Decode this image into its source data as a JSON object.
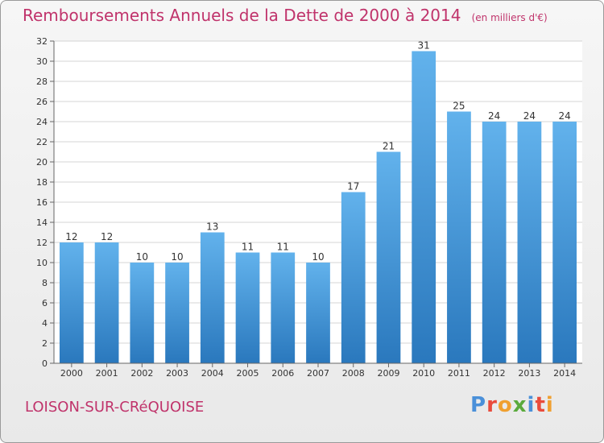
{
  "header": {
    "title": "Remboursements Annuels de la Dette de 2000 à 2014",
    "units": "(en milliers d'€)"
  },
  "footer": {
    "commune": "LOISON-SUR-CRéQUOISE",
    "logo_letters": [
      {
        "ch": "P",
        "color": "#4a90d9"
      },
      {
        "ch": "r",
        "color": "#e94b3c"
      },
      {
        "ch": "o",
        "color": "#f0a030"
      },
      {
        "ch": "x",
        "color": "#5aaa3c"
      },
      {
        "ch": "i",
        "color": "#4a90d9"
      },
      {
        "ch": "t",
        "color": "#e94b3c"
      },
      {
        "ch": "i",
        "color": "#f0a030"
      }
    ]
  },
  "colors": {
    "title": "#c0336b",
    "bar_top": "#62b2ec",
    "bar_bottom": "#2a78bd",
    "grid": "#d4d4d4",
    "axis": "#666666"
  },
  "chart_data": {
    "type": "bar",
    "categories": [
      "2000",
      "2001",
      "2002",
      "2003",
      "2004",
      "2005",
      "2006",
      "2007",
      "2008",
      "2009",
      "2010",
      "2011",
      "2012",
      "2013",
      "2014"
    ],
    "values": [
      12,
      12,
      10,
      10,
      13,
      11,
      11,
      10,
      17,
      21,
      31,
      25,
      24,
      24,
      24
    ],
    "ylim": [
      0,
      32
    ],
    "yticks": [
      0,
      2,
      4,
      6,
      8,
      10,
      12,
      14,
      16,
      18,
      20,
      22,
      24,
      26,
      28,
      30,
      32
    ],
    "grid": true,
    "data_labels": true
  }
}
